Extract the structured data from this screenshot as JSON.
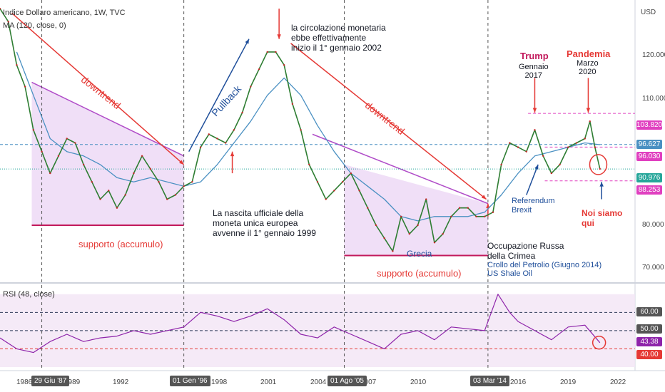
{
  "header": {
    "title": "Indice Dollaro americano, 1W, TVC",
    "ma_label": "MA (120, close, 0)",
    "rsi_label": "RSI (48, close)",
    "currency": "USD"
  },
  "colors": {
    "price": "#2e7d32",
    "ma": "#4a90c2",
    "rsi": "#8e24aa",
    "trend": "#e53935",
    "wedge": "#b04cc8",
    "support": "#c2185b"
  },
  "annotations": {
    "downtrend1": "downtrend",
    "pullback": "Pullback",
    "downtrend2": "downtrend",
    "support1": "supporto (accumulo)",
    "support2": "supporto (accumulo)",
    "euro_circ": [
      "la circolazione monetaria",
      "ebbe effettivamente",
      "inizio il 1° gennaio 2002"
    ],
    "euro_birth": [
      "La nascita ufficiale della",
      "moneta unica europea",
      "avvenne il 1° gennaio 1999"
    ],
    "grecia": "Grecia",
    "russia": [
      "Occupazione Russa",
      "della Crimea"
    ],
    "oil": [
      "Crollo del Petrolio (Giugno 2014)",
      "US Shale Oil"
    ],
    "trump_title": "Trump",
    "trump_sub": [
      "Gennaio",
      "2017"
    ],
    "pandemia_title": "Pandemia",
    "pandemia_sub": [
      "Marzo",
      "2020"
    ],
    "brexit": [
      "Referendum",
      "Brexit"
    ],
    "noi": [
      "Noi siamo",
      "qui"
    ]
  },
  "price_axis": {
    "ticks": [
      "120.000",
      "110.000",
      "80.000",
      "70.000"
    ],
    "levels": [
      {
        "value": "103.820",
        "color": "#e040c0"
      },
      {
        "value": "96.627",
        "color": "#4a90c2"
      },
      {
        "value": "96.030",
        "color": "#e040c0"
      },
      {
        "value": "90.976",
        "color": "#26a69a"
      },
      {
        "value": "88.253",
        "color": "#e040c0"
      }
    ]
  },
  "rsi_axis": {
    "levels": [
      {
        "value": "60.00",
        "color": "#555555"
      },
      {
        "value": "50.00",
        "color": "#555555"
      },
      {
        "value": "43.38",
        "color": "#8e24aa"
      },
      {
        "value": "40.00",
        "color": "#e53935"
      }
    ]
  },
  "time_axis": {
    "years": [
      "1986",
      "1989",
      "1992",
      "1998",
      "2001",
      "2004",
      "2007",
      "2010",
      "2016",
      "2019",
      "2022"
    ],
    "highlighted_dates": [
      "29 Giu '87",
      "01 Gen '96",
      "01 Ago '05",
      "03 Mar '14"
    ]
  },
  "chart_data": {
    "type": "line",
    "title": "Indice Dollaro americano, 1W, TVC",
    "xlabel": "",
    "ylabel": "",
    "x_range": [
      1985,
      2023
    ],
    "ylim": [
      65,
      130
    ],
    "series": [
      {
        "name": "Indice Dollaro americano",
        "x": [
          1985.0,
          1985.5,
          1986.0,
          1986.5,
          1987.0,
          1987.5,
          1988.0,
          1988.5,
          1989.0,
          1989.5,
          1990.0,
          1990.5,
          1991.0,
          1991.5,
          1992.0,
          1992.5,
          1993.0,
          1993.5,
          1994.0,
          1994.5,
          1995.0,
          1995.5,
          1996.0,
          1996.5,
          1997.0,
          1997.5,
          1998.0,
          1998.5,
          1999.0,
          1999.5,
          2000.0,
          2000.5,
          2001.0,
          2001.5,
          2002.0,
          2002.5,
          2003.0,
          2003.5,
          2004.0,
          2004.5,
          2005.0,
          2005.5,
          2006.0,
          2006.5,
          2007.0,
          2007.5,
          2008.0,
          2008.5,
          2009.0,
          2009.5,
          2010.0,
          2010.5,
          2011.0,
          2011.5,
          2012.0,
          2012.5,
          2013.0,
          2013.5,
          2014.0,
          2014.5,
          2015.0,
          2015.5,
          2016.0,
          2016.5,
          2017.0,
          2017.5,
          2018.0,
          2018.5,
          2019.0,
          2019.5,
          2020.0,
          2020.3,
          2020.6,
          2020.9
        ],
        "values": [
          128,
          125,
          115,
          110,
          100,
          95,
          90,
          94,
          98,
          97,
          92,
          88,
          84,
          86,
          82,
          85,
          90,
          94,
          91,
          88,
          84,
          85,
          87,
          88,
          96,
          99,
          98,
          97,
          100,
          104,
          110,
          114,
          118,
          118,
          115,
          106,
          100,
          92,
          88,
          84,
          86,
          88,
          90,
          86,
          82,
          78,
          75,
          72,
          80,
          76,
          78,
          84,
          74,
          76,
          80,
          82,
          82,
          80,
          80,
          81,
          92,
          97,
          96,
          95,
          100,
          94,
          90,
          92,
          96,
          97,
          98,
          102,
          96,
          91
        ]
      },
      {
        "name": "MA (120, close, 0)",
        "x": [
          1986.0,
          1987.0,
          1988.0,
          1989.0,
          1990.0,
          1991.0,
          1992.0,
          1993.0,
          1994.0,
          1995.0,
          1996.0,
          1997.0,
          1998.0,
          1999.0,
          2000.0,
          2001.0,
          2002.0,
          2003.0,
          2004.0,
          2005.0,
          2006.0,
          2007.0,
          2008.0,
          2009.0,
          2010.0,
          2011.0,
          2012.0,
          2013.0,
          2014.0,
          2015.0,
          2016.0,
          2017.0,
          2018.0,
          2019.0,
          2020.0,
          2020.9
        ],
        "values": [
          118,
          108,
          98,
          95,
          94,
          92,
          89,
          88,
          89,
          88,
          87,
          88,
          92,
          97,
          102,
          108,
          112,
          108,
          101,
          95,
          90,
          87,
          84,
          80,
          79,
          80,
          80,
          80,
          81,
          85,
          90,
          94,
          95,
          96,
          97,
          96.6
        ]
      }
    ],
    "rsi": {
      "name": "RSI (48, close)",
      "x": [
        1985.0,
        1986.0,
        1987.0,
        1988.0,
        1989.0,
        1990.0,
        1991.0,
        1992.0,
        1993.0,
        1994.0,
        1995.0,
        1996.0,
        1997.0,
        1998.0,
        1999.0,
        2000.0,
        2001.0,
        2002.0,
        2003.0,
        2004.0,
        2005.0,
        2006.0,
        2007.0,
        2008.0,
        2009.0,
        2010.0,
        2011.0,
        2012.0,
        2013.0,
        2014.0,
        2014.8,
        2015.5,
        2016.0,
        2017.0,
        2018.0,
        2019.0,
        2020.0,
        2020.9
      ],
      "values": [
        46,
        40,
        38,
        44,
        48,
        44,
        46,
        47,
        50,
        48,
        50,
        52,
        60,
        58,
        55,
        58,
        62,
        56,
        48,
        46,
        52,
        48,
        44,
        40,
        48,
        50,
        45,
        52,
        51,
        50,
        70,
        60,
        55,
        50,
        45,
        52,
        53,
        43.38
      ],
      "levels": [
        60,
        50,
        40
      ]
    },
    "levels": [
      103.82,
      96.627,
      96.03,
      90.976,
      88.253
    ],
    "grid": false,
    "legend": "none"
  }
}
